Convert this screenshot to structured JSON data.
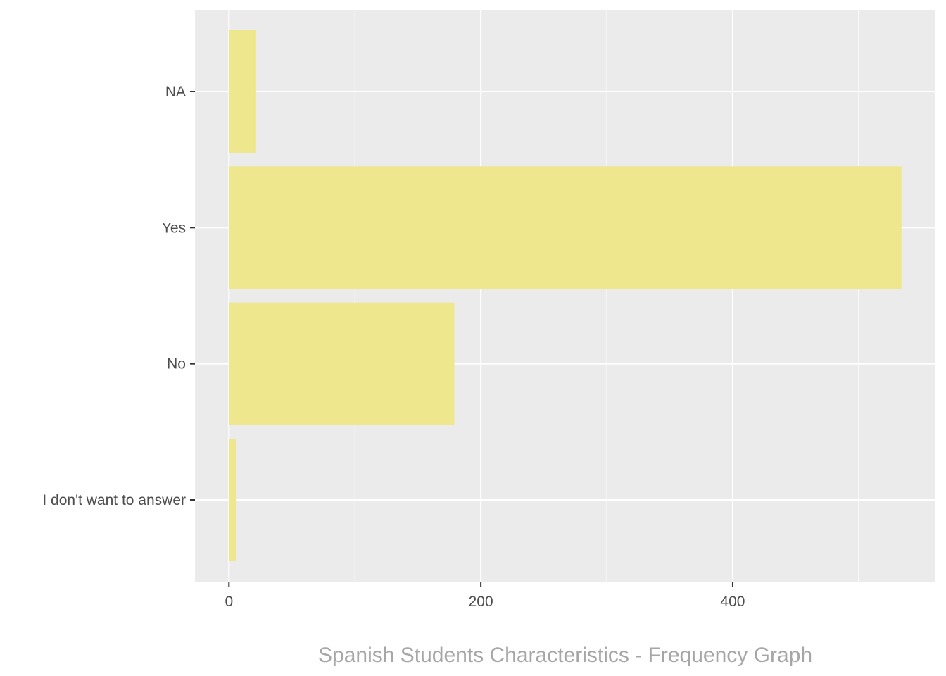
{
  "chart_data": {
    "type": "bar",
    "orientation": "horizontal",
    "categories": [
      "I don't want to answer",
      "No",
      "Yes",
      "NA"
    ],
    "values": [
      6,
      179,
      534,
      21
    ],
    "title": "",
    "caption": "Spanish Students Characteristics - Frequency Graph",
    "xlabel": "",
    "ylabel": "",
    "xlim": [
      -27,
      561
    ],
    "x_ticks": [
      0,
      200,
      400
    ],
    "x_tick_labels": [
      "0",
      "200",
      "400"
    ],
    "grid": true,
    "bar_color": "#eee78e",
    "panel_color": "#ebebeb",
    "grid_color": "#ffffff"
  }
}
